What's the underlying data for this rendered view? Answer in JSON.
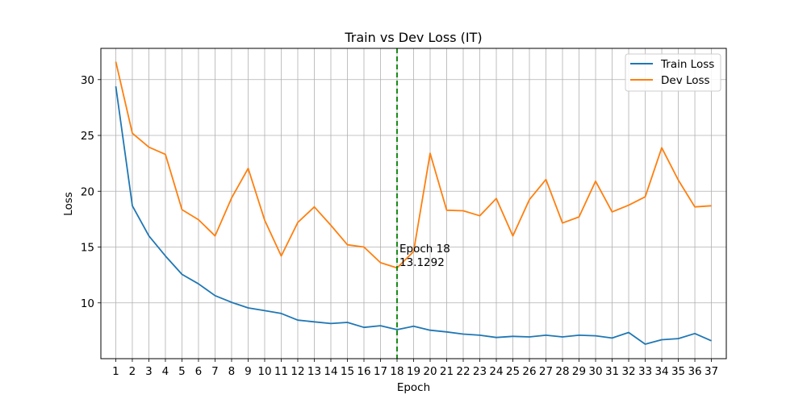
{
  "chart_data": {
    "type": "line",
    "title": "Train vs Dev Loss (IT)",
    "xlabel": "Epoch",
    "ylabel": "Loss",
    "x": [
      1,
      2,
      3,
      4,
      5,
      6,
      7,
      8,
      9,
      10,
      11,
      12,
      13,
      14,
      15,
      16,
      17,
      18,
      19,
      20,
      21,
      22,
      23,
      24,
      25,
      26,
      27,
      28,
      29,
      30,
      31,
      32,
      33,
      34,
      35,
      36,
      37
    ],
    "xlim": [
      0.1,
      37.9
    ],
    "ylim": [
      5.0,
      32.8
    ],
    "yticks": [
      10,
      15,
      20,
      25,
      30
    ],
    "grid": true,
    "legend_position": "top-right",
    "series": [
      {
        "name": "Train Loss",
        "color": "#1f77b4",
        "values": [
          29.4,
          18.7,
          16.0,
          14.2,
          12.55,
          11.7,
          10.65,
          10.05,
          9.55,
          9.3,
          9.05,
          8.45,
          8.3,
          8.15,
          8.25,
          7.8,
          7.95,
          7.6,
          7.9,
          7.55,
          7.4,
          7.2,
          7.1,
          6.9,
          7.0,
          6.95,
          7.1,
          6.95,
          7.1,
          7.05,
          6.85,
          7.35,
          6.3,
          6.7,
          6.8,
          7.25,
          6.6
        ]
      },
      {
        "name": "Dev Loss",
        "color": "#ff7f0e",
        "values": [
          31.6,
          25.2,
          23.95,
          23.3,
          18.35,
          17.45,
          16.0,
          19.4,
          22.05,
          17.4,
          14.2,
          17.2,
          18.6,
          16.95,
          15.2,
          15.0,
          13.6,
          13.13,
          14.6,
          23.4,
          18.3,
          18.25,
          17.8,
          19.35,
          16.0,
          19.25,
          21.05,
          17.15,
          17.7,
          20.9,
          18.15,
          18.75,
          19.5,
          23.9,
          21.0,
          18.6,
          18.7
        ]
      }
    ],
    "marker_line": {
      "x": 18,
      "color": "#008000"
    },
    "annotation": {
      "x": 18,
      "y": 13.1292,
      "line1": "Epoch 18",
      "line2": "13.1292"
    }
  }
}
